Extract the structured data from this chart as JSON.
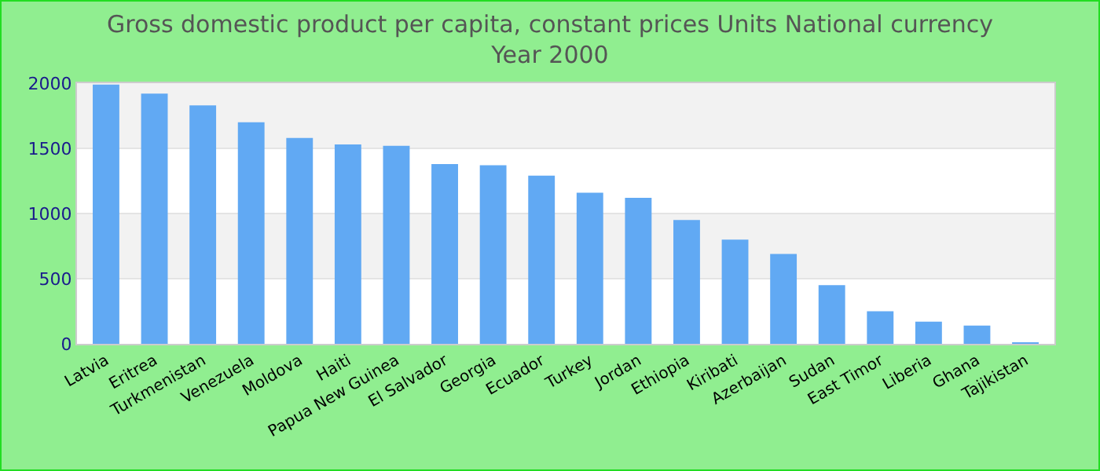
{
  "chart_data": {
    "type": "bar",
    "title": "Gross domestic product per capita, constant prices Units National currency",
    "subtitle": "Year 2000",
    "categories": [
      "Latvia",
      "Eritrea",
      "Turkmenistan",
      "Venezuela",
      "Moldova",
      "Haiti",
      "Papua New Guinea",
      "El Salvador",
      "Georgia",
      "Ecuador",
      "Turkey",
      "Jordan",
      "Ethiopia",
      "Kiribati",
      "Azerbaijan",
      "Sudan",
      "East Timor",
      "Liberia",
      "Ghana",
      "Tajikistan"
    ],
    "values": [
      1990,
      1920,
      1830,
      1700,
      1580,
      1530,
      1520,
      1380,
      1370,
      1290,
      1160,
      1120,
      950,
      800,
      690,
      450,
      250,
      170,
      140,
      10
    ],
    "color": "#61a9f3",
    "ylim": [
      0,
      2000
    ],
    "yticks": [
      0,
      500,
      1000,
      1500,
      2000
    ],
    "grid": true
  }
}
